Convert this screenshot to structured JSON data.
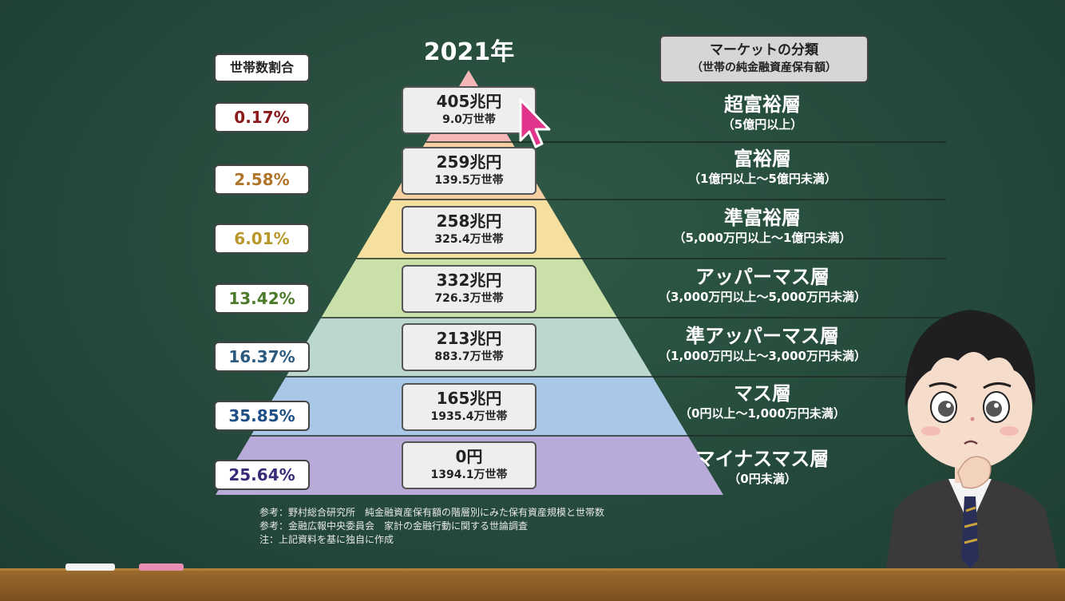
{
  "title": "2021年",
  "household_ratio_header": "世帯数割合",
  "classification_header": {
    "line1": "マーケットの分類",
    "line2": "（世帯の純金融資産保有額）"
  },
  "tiers": [
    {
      "percent": "0.17%",
      "amount": "405兆円",
      "households": "9.0万世帯",
      "name": "超富裕層",
      "range": "（5億円以上）",
      "color": "#f4b6b6",
      "pct_color": "#8b1a1a"
    },
    {
      "percent": "2.58%",
      "amount": "259兆円",
      "households": "139.5万世帯",
      "name": "富裕層",
      "range": "（1億円以上～5億円未満）",
      "color": "#f6cfa3",
      "pct_color": "#b0752a"
    },
    {
      "percent": "6.01%",
      "amount": "258兆円",
      "households": "325.4万世帯",
      "name": "準富裕層",
      "range": "（5,000万円以上～1億円未満）",
      "color": "#f6e0a0",
      "pct_color": "#b8962a"
    },
    {
      "percent": "13.42%",
      "amount": "332兆円",
      "households": "726.3万世帯",
      "name": "アッパーマス層",
      "range": "（3,000万円以上～5,000万円未満）",
      "color": "#c9e0a8",
      "pct_color": "#4b7a2a"
    },
    {
      "percent": "16.37%",
      "amount": "213兆円",
      "households": "883.7万世帯",
      "name": "準アッパーマス層",
      "range": "（1,000万円以上～3,000万円未満）",
      "color": "#bcd6d0",
      "pct_color": "#2a5a80"
    },
    {
      "percent": "35.85%",
      "amount": "165兆円",
      "households": "1935.4万世帯",
      "name": "マス層",
      "range": "（0円以上～1,000万円未満）",
      "color": "#a9c8e8",
      "pct_color": "#1e4f86"
    },
    {
      "percent": "25.64%",
      "amount": "0円",
      "households": "1394.1万世帯",
      "name": "マイナスマス層",
      "range": "（0円未満）",
      "color": "#b9abd9",
      "pct_color": "#3a2a78"
    }
  ],
  "notes": [
    "参考：野村総合研究所　純金融資産保有額の階層別にみた保有資産規模と世帯数",
    "参考：金融広報中央委員会　家計の金融行動に関する世論調査",
    "注：上記資料を基に独自に作成"
  ],
  "colors": {
    "board": "#2b5443",
    "ledge": "#8a5c26",
    "cursor": "#e0358a",
    "chalk_white": "#f4f4f4",
    "chalk_pink": "#e78fb3"
  }
}
